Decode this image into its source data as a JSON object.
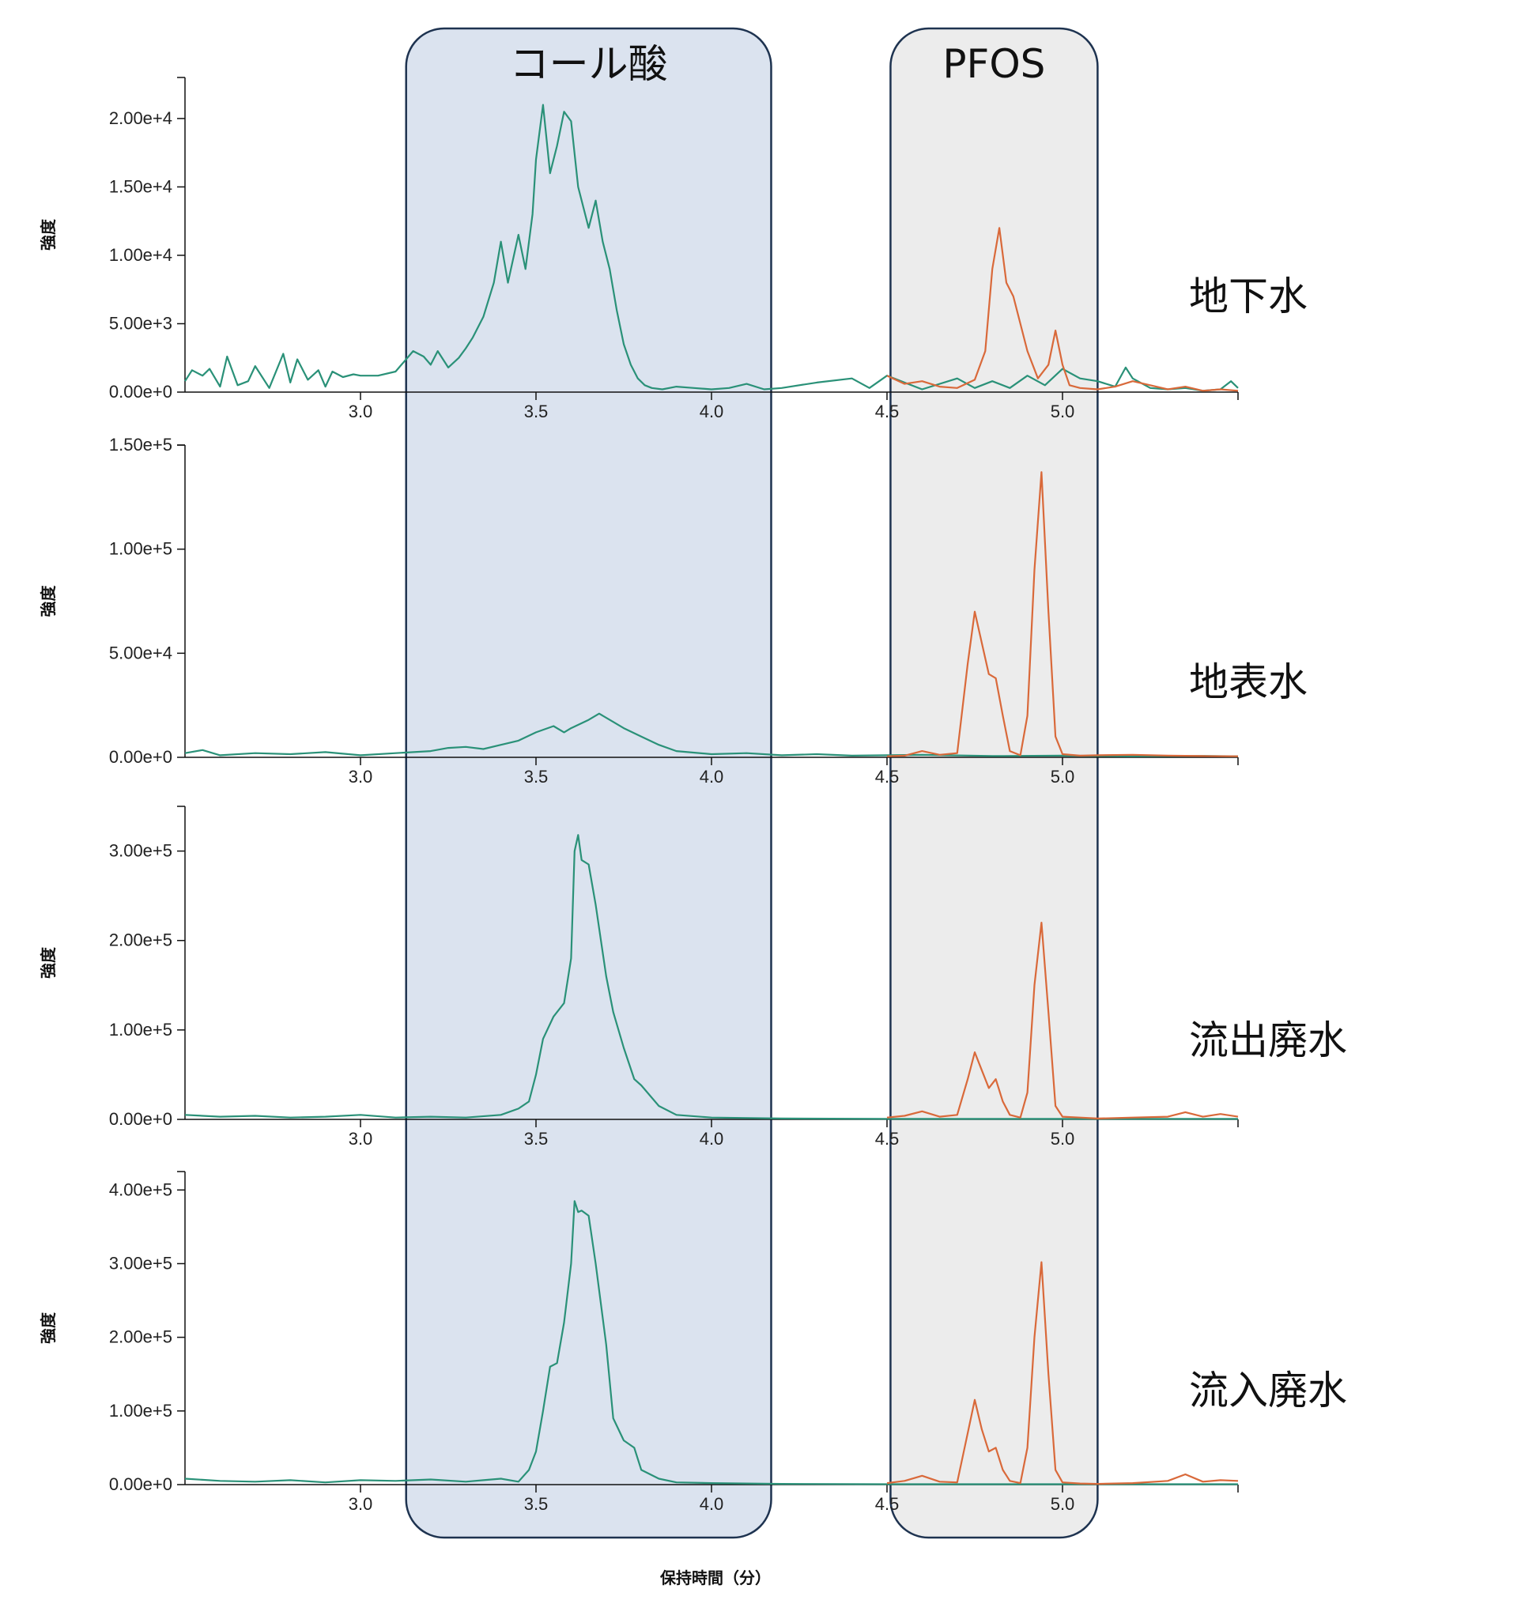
{
  "colors": {
    "cholic_acid": "#2a9178",
    "pfos": "#d9693a",
    "cholic_region_fill": "#dbe3ef",
    "pfos_region_fill": "#ececec",
    "region_stroke": "#1e3350",
    "axis": "#111111"
  },
  "regions": [
    {
      "label": "コール酸",
      "x_start": 3.13,
      "x_end": 4.17
    },
    {
      "label": "PFOS",
      "x_start": 4.51,
      "x_end": 5.1
    }
  ],
  "xlabel": "保持時間（分）",
  "chart_data": [
    {
      "type": "line",
      "sample": "地下水",
      "ylabel": "強度",
      "xlim": [
        2.5,
        5.5
      ],
      "ylim": [
        0,
        23000
      ],
      "y_ticks": [
        0,
        5000,
        10000,
        15000,
        20000
      ],
      "y_tick_labels": [
        "0.00e+0",
        "5.00e+3",
        "1.00e+4",
        "1.50e+4",
        "2.00e+4"
      ],
      "x_ticks": [
        3.0,
        3.5,
        4.0,
        4.5,
        5.0
      ],
      "x_tick_labels": [
        "3.0",
        "3.5",
        "4.0",
        "4.5",
        "5.0"
      ],
      "series": [
        {
          "key": "cholic_acid",
          "x": [
            2.5,
            2.52,
            2.55,
            2.57,
            2.6,
            2.62,
            2.65,
            2.68,
            2.7,
            2.74,
            2.78,
            2.8,
            2.82,
            2.85,
            2.88,
            2.9,
            2.92,
            2.95,
            2.98,
            3.0,
            3.05,
            3.1,
            3.15,
            3.18,
            3.2,
            3.22,
            3.25,
            3.28,
            3.3,
            3.32,
            3.35,
            3.38,
            3.4,
            3.42,
            3.45,
            3.47,
            3.49,
            3.5,
            3.52,
            3.54,
            3.56,
            3.58,
            3.6,
            3.62,
            3.65,
            3.67,
            3.69,
            3.71,
            3.73,
            3.75,
            3.77,
            3.79,
            3.81,
            3.83,
            3.86,
            3.9,
            3.95,
            4.0,
            4.05,
            4.1,
            4.15,
            4.2,
            4.3,
            4.4,
            4.45,
            4.5,
            4.6,
            4.7,
            4.75,
            4.8,
            4.85,
            4.9,
            4.95,
            5.0,
            5.05,
            5.1,
            5.15,
            5.18,
            5.2,
            5.25,
            5.3,
            5.35,
            5.4,
            5.45,
            5.48,
            5.5
          ],
          "y": [
            800,
            1600,
            1200,
            1700,
            400,
            2600,
            500,
            800,
            1900,
            300,
            2800,
            700,
            2400,
            900,
            1600,
            400,
            1500,
            1100,
            1300,
            1200,
            1200,
            1500,
            3000,
            2600,
            2000,
            3000,
            1800,
            2500,
            3200,
            4000,
            5500,
            8000,
            11000,
            8000,
            11500,
            9000,
            13000,
            17000,
            21000,
            16000,
            18000,
            20500,
            19800,
            15000,
            12000,
            14000,
            11000,
            9000,
            6000,
            3500,
            2000,
            1000,
            500,
            300,
            200,
            400,
            300,
            200,
            300,
            600,
            200,
            300,
            700,
            1000,
            300,
            1200,
            200,
            1000,
            300,
            800,
            300,
            1200,
            500,
            1700,
            1000,
            800,
            400,
            1800,
            1000,
            300,
            200,
            300,
            100,
            200,
            800,
            300
          ]
        },
        {
          "key": "pfos",
          "x": [
            4.5,
            4.55,
            4.6,
            4.65,
            4.7,
            4.75,
            4.78,
            4.8,
            4.82,
            4.84,
            4.86,
            4.88,
            4.9,
            4.93,
            4.96,
            4.98,
            5.0,
            5.02,
            5.05,
            5.1,
            5.15,
            5.2,
            5.25,
            5.3,
            5.35,
            5.4,
            5.45,
            5.5
          ],
          "y": [
            1200,
            600,
            800,
            400,
            300,
            900,
            3000,
            9000,
            12000,
            8000,
            7000,
            5000,
            3000,
            1000,
            2000,
            4500,
            2000,
            500,
            300,
            200,
            400,
            800,
            500,
            200,
            400,
            100,
            200,
            100
          ]
        }
      ]
    },
    {
      "type": "line",
      "sample": "地表水",
      "ylabel": "強度",
      "xlim": [
        2.5,
        5.5
      ],
      "ylim": [
        0,
        150000
      ],
      "y_ticks": [
        0,
        50000,
        100000,
        150000
      ],
      "y_tick_labels": [
        "0.00e+0",
        "5.00e+4",
        "1.00e+5",
        "1.50e+5"
      ],
      "x_ticks": [
        3.0,
        3.5,
        4.0,
        4.5,
        5.0
      ],
      "x_tick_labels": [
        "3.0",
        "3.5",
        "4.0",
        "4.5",
        "5.0"
      ],
      "series": [
        {
          "key": "cholic_acid",
          "x": [
            2.5,
            2.55,
            2.6,
            2.7,
            2.8,
            2.9,
            3.0,
            3.1,
            3.2,
            3.25,
            3.3,
            3.35,
            3.4,
            3.45,
            3.5,
            3.55,
            3.58,
            3.6,
            3.65,
            3.68,
            3.72,
            3.75,
            3.8,
            3.85,
            3.9,
            4.0,
            4.1,
            4.2,
            4.3,
            4.4,
            4.5,
            4.6,
            4.8,
            5.0,
            5.2,
            5.4,
            5.5
          ],
          "y": [
            2000,
            3500,
            1000,
            2000,
            1500,
            2500,
            1000,
            2000,
            3000,
            4500,
            5000,
            4000,
            6000,
            8000,
            12000,
            15000,
            12000,
            14000,
            18000,
            21000,
            17000,
            14000,
            10000,
            6000,
            3000,
            1500,
            2000,
            1000,
            1500,
            800,
            1000,
            1200,
            600,
            800,
            500,
            700,
            500
          ]
        },
        {
          "key": "pfos",
          "x": [
            4.5,
            4.55,
            4.6,
            4.65,
            4.7,
            4.73,
            4.75,
            4.77,
            4.79,
            4.81,
            4.83,
            4.85,
            4.88,
            4.9,
            4.92,
            4.94,
            4.96,
            4.98,
            5.0,
            5.05,
            5.1,
            5.2,
            5.3,
            5.4,
            5.5
          ],
          "y": [
            500,
            800,
            3000,
            1200,
            2000,
            45000,
            70000,
            55000,
            40000,
            38000,
            20000,
            3000,
            1000,
            20000,
            90000,
            137000,
            70000,
            10000,
            1500,
            800,
            1000,
            1200,
            800,
            600,
            500
          ]
        }
      ]
    },
    {
      "type": "line",
      "sample": "流出廃水",
      "ylabel": "強度",
      "xlim": [
        2.5,
        5.5
      ],
      "ylim": [
        0,
        350000
      ],
      "y_ticks": [
        0,
        100000,
        200000,
        300000
      ],
      "y_tick_labels": [
        "0.00e+0",
        "1.00e+5",
        "2.00e+5",
        "3.00e+5"
      ],
      "x_ticks": [
        3.0,
        3.5,
        4.0,
        4.5,
        5.0
      ],
      "x_tick_labels": [
        "3.0",
        "3.5",
        "4.0",
        "4.5",
        "5.0"
      ],
      "series": [
        {
          "key": "cholic_acid",
          "x": [
            2.5,
            2.6,
            2.7,
            2.8,
            2.9,
            3.0,
            3.1,
            3.2,
            3.3,
            3.4,
            3.45,
            3.48,
            3.5,
            3.52,
            3.55,
            3.58,
            3.6,
            3.61,
            3.62,
            3.63,
            3.65,
            3.67,
            3.7,
            3.72,
            3.75,
            3.78,
            3.8,
            3.85,
            3.9,
            4.0,
            4.2,
            4.5,
            5.0,
            5.5
          ],
          "y": [
            5000,
            3000,
            4000,
            2000,
            3000,
            5000,
            2000,
            3000,
            2000,
            5000,
            12000,
            20000,
            50000,
            90000,
            115000,
            130000,
            180000,
            300000,
            318000,
            290000,
            285000,
            240000,
            160000,
            120000,
            80000,
            45000,
            38000,
            15000,
            5000,
            2000,
            1000,
            500,
            500,
            500
          ]
        },
        {
          "key": "pfos",
          "x": [
            4.5,
            4.55,
            4.6,
            4.65,
            4.7,
            4.73,
            4.75,
            4.77,
            4.79,
            4.81,
            4.83,
            4.85,
            4.88,
            4.9,
            4.92,
            4.94,
            4.96,
            4.98,
            5.0,
            5.05,
            5.1,
            5.2,
            5.3,
            5.35,
            5.4,
            5.45,
            5.5
          ],
          "y": [
            2000,
            4000,
            9000,
            3000,
            5000,
            45000,
            75000,
            55000,
            35000,
            45000,
            20000,
            5000,
            2000,
            30000,
            150000,
            220000,
            120000,
            15000,
            3000,
            2000,
            1000,
            2000,
            3000,
            8000,
            3000,
            6000,
            3000
          ]
        }
      ]
    },
    {
      "type": "line",
      "sample": "流入廃水",
      "ylabel": "強度",
      "xlim": [
        2.5,
        5.5
      ],
      "ylim": [
        0,
        425000
      ],
      "y_ticks": [
        0,
        100000,
        200000,
        300000,
        400000
      ],
      "y_tick_labels": [
        "0.00e+0",
        "1.00e+5",
        "2.00e+5",
        "3.00e+5",
        "4.00e+5"
      ],
      "x_ticks": [
        3.0,
        3.5,
        4.0,
        4.5,
        5.0
      ],
      "x_tick_labels": [
        "3.0",
        "3.5",
        "4.0",
        "4.5",
        "5.0"
      ],
      "series": [
        {
          "key": "cholic_acid",
          "x": [
            2.5,
            2.6,
            2.7,
            2.8,
            2.9,
            3.0,
            3.1,
            3.2,
            3.3,
            3.35,
            3.4,
            3.45,
            3.48,
            3.5,
            3.52,
            3.54,
            3.56,
            3.58,
            3.6,
            3.61,
            3.62,
            3.63,
            3.65,
            3.67,
            3.7,
            3.72,
            3.75,
            3.78,
            3.8,
            3.85,
            3.9,
            4.0,
            4.2,
            4.5,
            5.0,
            5.5
          ],
          "y": [
            8000,
            5000,
            4000,
            6000,
            3000,
            6000,
            5000,
            7000,
            4000,
            6000,
            8000,
            4000,
            20000,
            45000,
            100000,
            160000,
            165000,
            220000,
            300000,
            385000,
            370000,
            372000,
            365000,
            300000,
            190000,
            90000,
            60000,
            50000,
            20000,
            8000,
            3000,
            2000,
            1000,
            500,
            500,
            500
          ]
        },
        {
          "key": "pfos",
          "x": [
            4.5,
            4.55,
            4.6,
            4.65,
            4.7,
            4.73,
            4.75,
            4.77,
            4.79,
            4.81,
            4.83,
            4.85,
            4.88,
            4.9,
            4.92,
            4.94,
            4.96,
            4.98,
            5.0,
            5.05,
            5.1,
            5.2,
            5.3,
            5.35,
            5.4,
            5.45,
            5.5
          ],
          "y": [
            2000,
            5000,
            12000,
            4000,
            3000,
            70000,
            115000,
            75000,
            45000,
            50000,
            20000,
            5000,
            2000,
            50000,
            200000,
            302000,
            150000,
            20000,
            3000,
            1500,
            1000,
            2000,
            5000,
            14000,
            4000,
            6000,
            5000
          ]
        }
      ]
    }
  ]
}
